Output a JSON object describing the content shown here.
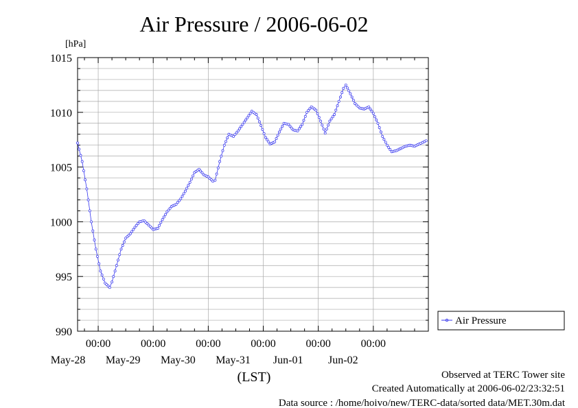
{
  "chart_data": {
    "type": "line",
    "title": "Air Pressure / 2006-06-02",
    "ylabel": "[hPa]",
    "xlabel": "(LST)",
    "ylim": [
      990,
      1015
    ],
    "yticks": [
      "990",
      "995",
      "1000",
      "1005",
      "1010",
      "1015"
    ],
    "xlim": [
      "2006-05-27 15:00",
      "2006-06-03 00:00"
    ],
    "xticks": [
      {
        "x": "2006-05-28 00:00",
        "time": "00:00",
        "date": "May-28"
      },
      {
        "x": "2006-05-29 00:00",
        "time": "00:00",
        "date": "May-29"
      },
      {
        "x": "2006-05-30 00:00",
        "time": "00:00",
        "date": "May-30"
      },
      {
        "x": "2006-05-31 00:00",
        "time": "00:00",
        "date": "May-31"
      },
      {
        "x": "2006-06-01 00:00",
        "time": "00:00",
        "date": "Jun-01"
      },
      {
        "x": "2006-06-02 00:00",
        "time": "00:00",
        "date": "Jun-02"
      }
    ],
    "grid": true,
    "legend_position": "right",
    "series": [
      {
        "name": "Air Pressure",
        "color": "#3333ee",
        "marker": "circle",
        "points": [
          [
            "2006-05-27 15:00",
            1007.2
          ],
          [
            "2006-05-27 17:00",
            1005.5
          ],
          [
            "2006-05-27 19:00",
            1003.0
          ],
          [
            "2006-05-27 21:00",
            1000.0
          ],
          [
            "2006-05-27 23:00",
            997.5
          ],
          [
            "2006-05-28 01:00",
            995.5
          ],
          [
            "2006-05-28 03:00",
            994.4
          ],
          [
            "2006-05-28 05:00",
            994.0
          ],
          [
            "2006-05-28 06:00",
            994.5
          ],
          [
            "2006-05-28 08:00",
            996.0
          ],
          [
            "2006-05-28 10:00",
            997.5
          ],
          [
            "2006-05-28 12:00",
            998.5
          ],
          [
            "2006-05-28 14:00",
            998.9
          ],
          [
            "2006-05-28 16:00",
            999.5
          ],
          [
            "2006-05-28 18:00",
            1000.0
          ],
          [
            "2006-05-28 20:00",
            1000.1
          ],
          [
            "2006-05-28 22:00",
            999.7
          ],
          [
            "2006-05-29 00:00",
            999.3
          ],
          [
            "2006-05-29 02:00",
            999.4
          ],
          [
            "2006-05-29 04:00",
            1000.2
          ],
          [
            "2006-05-29 06:00",
            1000.9
          ],
          [
            "2006-05-29 08:00",
            1001.4
          ],
          [
            "2006-05-29 10:00",
            1001.6
          ],
          [
            "2006-05-29 12:00",
            1002.1
          ],
          [
            "2006-05-29 14:00",
            1002.8
          ],
          [
            "2006-05-29 16:00",
            1003.6
          ],
          [
            "2006-05-29 18:00",
            1004.5
          ],
          [
            "2006-05-29 20:00",
            1004.8
          ],
          [
            "2006-05-29 22:00",
            1004.3
          ],
          [
            "2006-05-30 00:00",
            1004.1
          ],
          [
            "2006-05-30 02:00",
            1003.7
          ],
          [
            "2006-05-30 03:00",
            1003.8
          ],
          [
            "2006-05-30 05:00",
            1005.5
          ],
          [
            "2006-05-30 07:00",
            1007.0
          ],
          [
            "2006-05-30 09:00",
            1008.0
          ],
          [
            "2006-05-30 11:00",
            1007.8
          ],
          [
            "2006-05-30 13:00",
            1008.3
          ],
          [
            "2006-05-30 15:00",
            1008.9
          ],
          [
            "2006-05-30 17:00",
            1009.5
          ],
          [
            "2006-05-30 19:00",
            1010.1
          ],
          [
            "2006-05-30 21:00",
            1009.8
          ],
          [
            "2006-05-30 23:00",
            1008.8
          ],
          [
            "2006-05-31 01:00",
            1007.7
          ],
          [
            "2006-05-31 03:00",
            1007.1
          ],
          [
            "2006-05-31 05:00",
            1007.3
          ],
          [
            "2006-05-31 07:00",
            1008.2
          ],
          [
            "2006-05-31 09:00",
            1009.0
          ],
          [
            "2006-05-31 11:00",
            1008.9
          ],
          [
            "2006-05-31 13:00",
            1008.4
          ],
          [
            "2006-05-31 15:00",
            1008.3
          ],
          [
            "2006-05-31 17:00",
            1008.9
          ],
          [
            "2006-05-31 19:00",
            1010.0
          ],
          [
            "2006-05-31 21:00",
            1010.5
          ],
          [
            "2006-05-31 23:00",
            1010.2
          ],
          [
            "2006-06-01 01:00",
            1009.2
          ],
          [
            "2006-06-01 03:00",
            1008.1
          ],
          [
            "2006-06-01 05:00",
            1009.2
          ],
          [
            "2006-06-01 07:00",
            1009.8
          ],
          [
            "2006-06-01 09:00",
            1011.0
          ],
          [
            "2006-06-01 11:00",
            1012.2
          ],
          [
            "2006-06-01 12:00",
            1012.5
          ],
          [
            "2006-06-01 14:00",
            1011.7
          ],
          [
            "2006-06-01 16:00",
            1010.8
          ],
          [
            "2006-06-01 18:00",
            1010.4
          ],
          [
            "2006-06-01 20:00",
            1010.3
          ],
          [
            "2006-06-01 22:00",
            1010.5
          ],
          [
            "2006-06-02 00:00",
            1009.9
          ],
          [
            "2006-06-02 02:00",
            1009.0
          ],
          [
            "2006-06-02 04:00",
            1007.8
          ],
          [
            "2006-06-02 06:00",
            1007.0
          ],
          [
            "2006-06-02 08:00",
            1006.4
          ],
          [
            "2006-06-02 10:00",
            1006.5
          ],
          [
            "2006-06-02 12:00",
            1006.7
          ],
          [
            "2006-06-02 14:00",
            1006.9
          ],
          [
            "2006-06-02 16:00",
            1007.0
          ],
          [
            "2006-06-02 18:00",
            1006.9
          ],
          [
            "2006-06-02 20:00",
            1007.1
          ],
          [
            "2006-06-02 23:00",
            1007.4
          ]
        ]
      }
    ]
  },
  "footer": {
    "line1": "Observed at TERC Tower site",
    "line2": "Created Automatically at 2006-06-02/23:32:51",
    "line3": "Data source : /home/hoivo/new/TERC-data/sorted data/MET.30m.dat"
  }
}
